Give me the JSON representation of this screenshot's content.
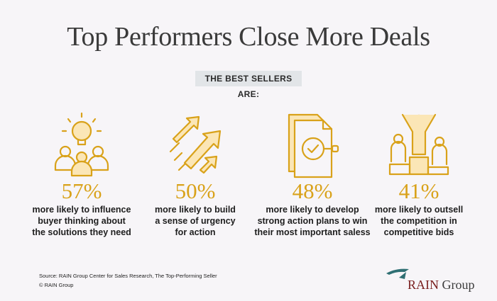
{
  "title": "Top Performers Close More Deals",
  "badge": "THE BEST SELLERS ARE:",
  "stats": [
    {
      "pct": "57%",
      "line1": "more likely to influence",
      "line2": "buyer thinking about",
      "line3": "the solutions they need",
      "icon": "team-idea-icon"
    },
    {
      "pct": "50%",
      "line1": "more likely to build",
      "line2": "a sense of urgency",
      "line3": "for action",
      "icon": "arrows-up-icon"
    },
    {
      "pct": "48%",
      "line1": "more likely to develop",
      "line2": "strong action plans to win",
      "line3": "their most important saless",
      "icon": "action-plan-icon"
    },
    {
      "pct": "41%",
      "line1": "more likely to outsell",
      "line2": "the competition in",
      "line3": "competitive bids",
      "icon": "winner-podium-icon"
    }
  ],
  "source_line": "Source: RAIN Group Center for Sales Research, The Top-Performing Seller",
  "copyright": "© RAIN Group",
  "logo": {
    "word1": "RAIN",
    "word2": "Group"
  },
  "colors": {
    "accent": "#d9a21a",
    "accent_light": "#fbe6b6",
    "title": "#3a3a3a"
  }
}
